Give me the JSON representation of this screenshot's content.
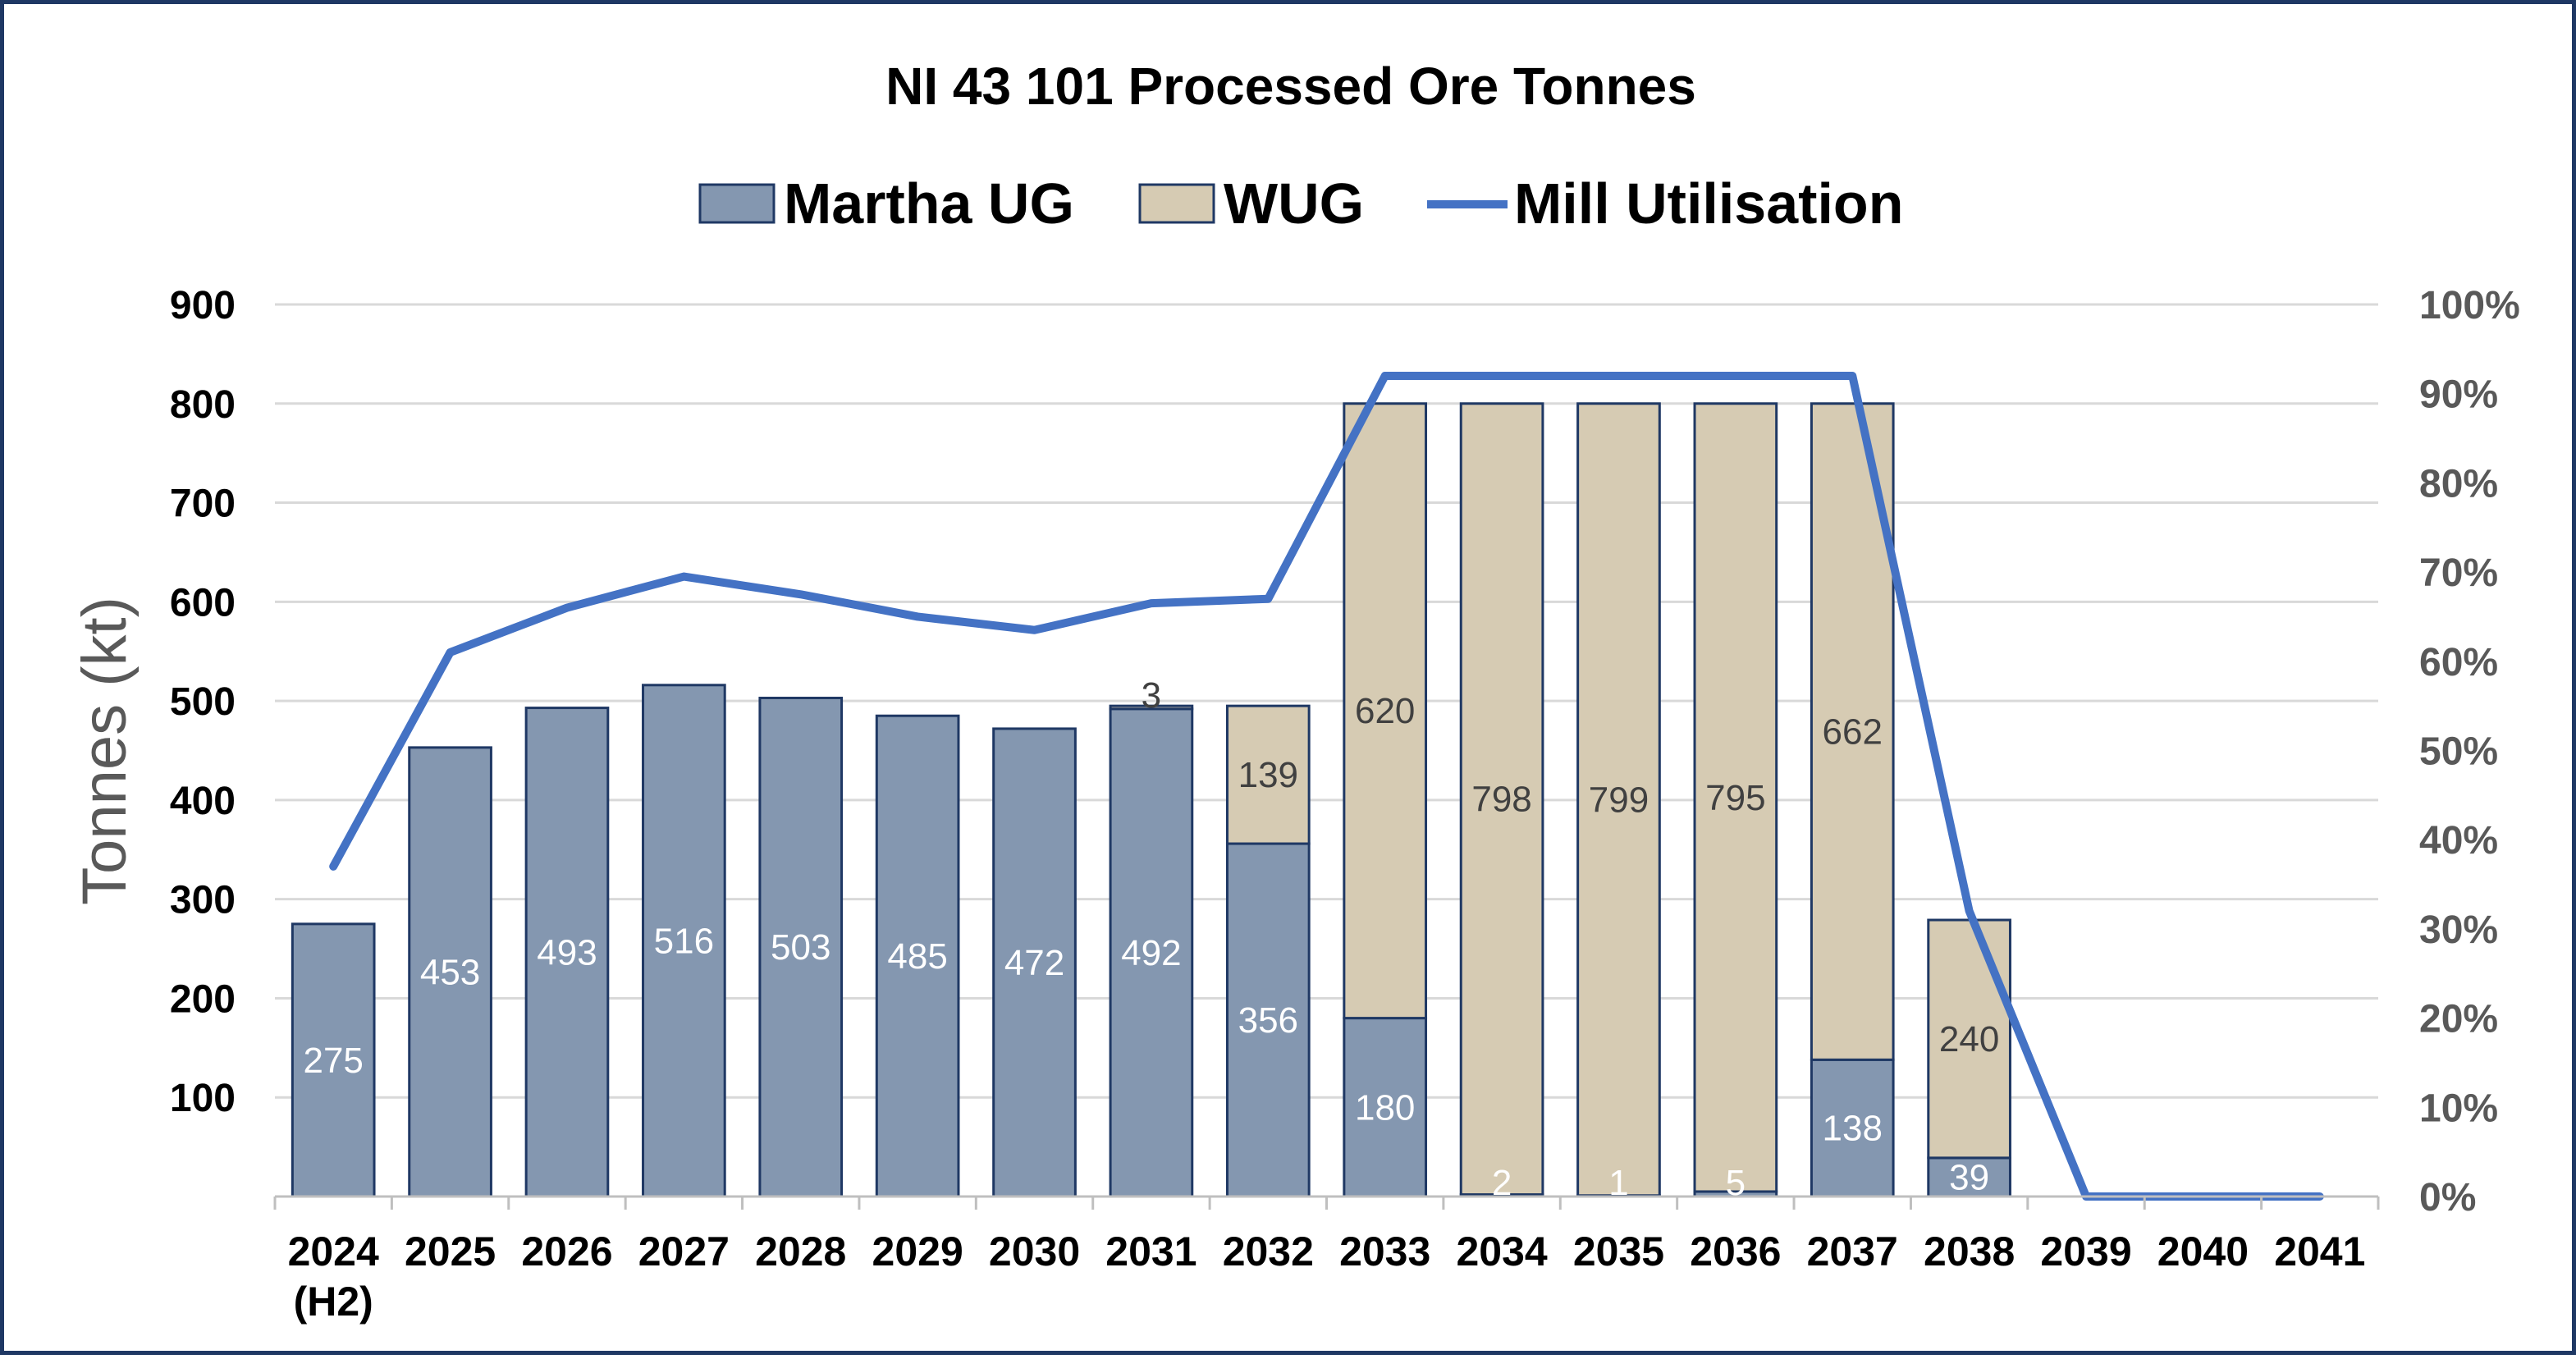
{
  "chart_data": {
    "type": "bar",
    "title": "NI 43 101  Processed Ore Tonnes",
    "ylabel": "Tonnes (kt)",
    "ylim": [
      0,
      900
    ],
    "y_ticks": [
      "100",
      "200",
      "300",
      "400",
      "500",
      "600",
      "700",
      "800",
      "900"
    ],
    "y2lim": [
      0,
      100
    ],
    "y2_ticks": [
      "0%",
      "10%",
      "20%",
      "30%",
      "40%",
      "50%",
      "60%",
      "70%",
      "80%",
      "90%",
      "100%"
    ],
    "categories": [
      "2024",
      "2025",
      "2026",
      "2027",
      "2028",
      "2029",
      "2030",
      "2031",
      "2032",
      "2033",
      "2034",
      "2035",
      "2036",
      "2037",
      "2038",
      "2039",
      "2040",
      "2041"
    ],
    "category_sublabels": [
      "(H2)",
      "",
      "",
      "",
      "",
      "",
      "",
      "",
      "",
      "",
      "",
      "",
      "",
      "",
      "",
      "",
      "",
      ""
    ],
    "stacked": true,
    "grid": true,
    "legend": "top",
    "series": [
      {
        "name": "Martha UG",
        "kind": "bar",
        "color": "#8497b0",
        "values": [
          275,
          453,
          493,
          516,
          503,
          485,
          472,
          492,
          356,
          180,
          2,
          1,
          5,
          138,
          39,
          0,
          0,
          0
        ],
        "labels": [
          "275",
          "453",
          "493",
          "516",
          "503",
          "485",
          "472",
          "492",
          "356",
          "180",
          "2",
          "1",
          "5",
          "138",
          "39",
          "",
          "",
          ""
        ]
      },
      {
        "name": "WUG",
        "kind": "bar",
        "color": "#d6cbb3",
        "values": [
          0,
          0,
          0,
          0,
          0,
          0,
          0,
          3,
          139,
          620,
          798,
          799,
          795,
          662,
          240,
          0,
          0,
          0
        ],
        "labels": [
          "",
          "",
          "",
          "",
          "",
          "",
          "",
          "3",
          "139",
          "620",
          "798",
          "799",
          "795",
          "662",
          "240",
          "",
          "",
          ""
        ]
      },
      {
        "name": "Mill Utilisation",
        "kind": "line",
        "axis": "right",
        "color": "#4472c4",
        "values": [
          37,
          61,
          66,
          69.5,
          67.5,
          65,
          63.5,
          66.5,
          67,
          92,
          92,
          92,
          92,
          92,
          32,
          0,
          0,
          0
        ]
      }
    ]
  }
}
